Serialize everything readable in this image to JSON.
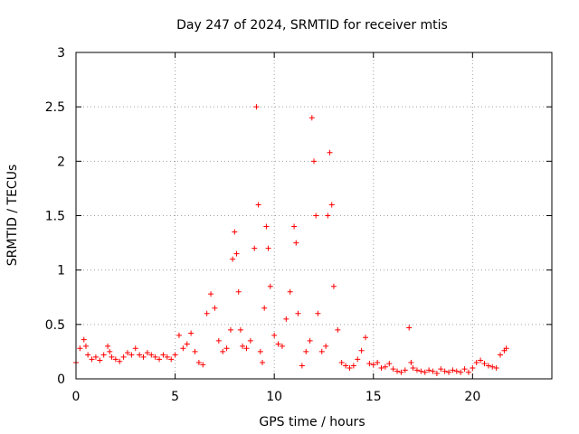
{
  "chart_data": {
    "type": "scatter",
    "title": "Day 247 of 2024, SRMTID for receiver mtis",
    "xlabel": "GPS time / hours",
    "ylabel": "SRMTID / TECUs",
    "xlim": [
      0,
      24
    ],
    "ylim": [
      0,
      3
    ],
    "xticks": [
      0,
      5,
      10,
      15,
      20
    ],
    "yticks": [
      0,
      0.5,
      1,
      1.5,
      2,
      2.5,
      3
    ],
    "xtick_labels": [
      "0",
      "5",
      "10",
      "15",
      "20"
    ],
    "ytick_labels": [
      "0",
      "0.5",
      "1",
      "1.5",
      "2",
      "2.5",
      "3"
    ],
    "grid": true,
    "marker": "+",
    "color": "#ff0000",
    "series": [
      {
        "name": "mtis",
        "x": [
          0.0,
          0.2,
          0.4,
          0.5,
          0.6,
          0.8,
          1.0,
          1.2,
          1.4,
          1.6,
          1.7,
          1.8,
          2.0,
          2.2,
          2.4,
          2.6,
          2.8,
          3.0,
          3.2,
          3.4,
          3.6,
          3.8,
          4.0,
          4.2,
          4.4,
          4.6,
          4.8,
          5.0,
          5.2,
          5.4,
          5.6,
          5.8,
          6.0,
          6.2,
          6.4,
          6.6,
          6.8,
          7.0,
          7.2,
          7.4,
          7.6,
          7.8,
          7.9,
          8.0,
          8.1,
          8.2,
          8.3,
          8.4,
          8.6,
          8.8,
          9.0,
          9.1,
          9.2,
          9.3,
          9.4,
          9.5,
          9.6,
          9.7,
          9.8,
          10.0,
          10.2,
          10.4,
          10.6,
          10.8,
          11.0,
          11.1,
          11.2,
          11.4,
          11.6,
          11.8,
          11.9,
          12.0,
          12.1,
          12.2,
          12.4,
          12.6,
          12.7,
          12.8,
          12.9,
          13.0,
          13.2,
          13.4,
          13.6,
          13.8,
          14.0,
          14.2,
          14.4,
          14.6,
          14.8,
          15.0,
          15.2,
          15.4,
          15.6,
          15.8,
          16.0,
          16.2,
          16.4,
          16.6,
          16.8,
          16.9,
          17.0,
          17.2,
          17.4,
          17.6,
          17.8,
          18.0,
          18.2,
          18.4,
          18.6,
          18.8,
          19.0,
          19.2,
          19.4,
          19.6,
          19.8,
          20.0,
          20.2,
          20.4,
          20.6,
          20.8,
          21.0,
          21.2,
          21.4,
          21.6,
          21.7
        ],
        "y": [
          0.15,
          0.28,
          0.36,
          0.3,
          0.22,
          0.18,
          0.2,
          0.17,
          0.22,
          0.3,
          0.25,
          0.2,
          0.18,
          0.16,
          0.2,
          0.24,
          0.22,
          0.28,
          0.22,
          0.2,
          0.24,
          0.22,
          0.2,
          0.18,
          0.22,
          0.2,
          0.18,
          0.22,
          0.4,
          0.28,
          0.32,
          0.42,
          0.25,
          0.15,
          0.13,
          0.6,
          0.78,
          0.65,
          0.35,
          0.25,
          0.28,
          0.45,
          1.1,
          1.35,
          1.15,
          0.8,
          0.45,
          0.3,
          0.28,
          0.35,
          1.2,
          2.5,
          1.6,
          0.25,
          0.15,
          0.65,
          1.4,
          1.2,
          0.85,
          0.4,
          0.32,
          0.3,
          0.55,
          0.8,
          1.4,
          1.25,
          0.6,
          0.12,
          0.25,
          0.35,
          2.4,
          2.0,
          1.5,
          0.6,
          0.25,
          0.3,
          1.5,
          2.08,
          1.6,
          0.85,
          0.45,
          0.15,
          0.12,
          0.1,
          0.12,
          0.18,
          0.26,
          0.38,
          0.14,
          0.13,
          0.15,
          0.1,
          0.11,
          0.14,
          0.09,
          0.07,
          0.06,
          0.08,
          0.47,
          0.15,
          0.1,
          0.08,
          0.07,
          0.06,
          0.08,
          0.07,
          0.05,
          0.09,
          0.07,
          0.06,
          0.08,
          0.07,
          0.06,
          0.09,
          0.06,
          0.1,
          0.15,
          0.17,
          0.14,
          0.12,
          0.11,
          0.1,
          0.22,
          0.26,
          0.28
        ]
      }
    ]
  }
}
